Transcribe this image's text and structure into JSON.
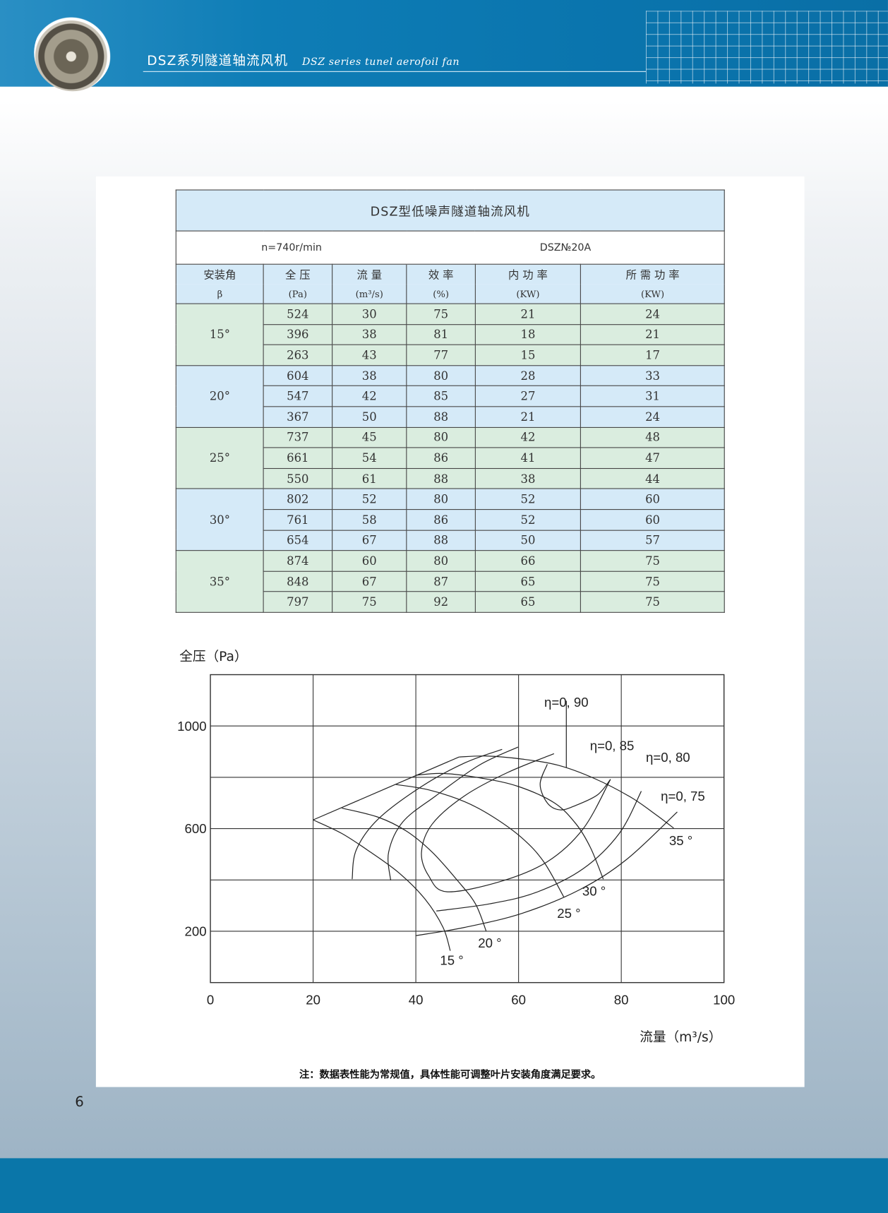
{
  "header": {
    "title_cn": "DSZ系列隧道轴流风机",
    "title_en": "DSZ series tunel aerofoil fan",
    "colors": {
      "band": "#0a74ad",
      "footer": "#0a76a9"
    }
  },
  "table": {
    "title": "DSZ型低噪声隧道轴流风机",
    "speed": "n=740r/min",
    "model": "DSZ№20A",
    "columns": [
      {
        "name": "安装角",
        "unit": "β"
      },
      {
        "name": "全 压",
        "unit": "(Pa)"
      },
      {
        "name": "流 量",
        "unit": "(m³/s)"
      },
      {
        "name": "效 率",
        "unit": "(%)"
      },
      {
        "name": "内 功 率",
        "unit": "(KW)"
      },
      {
        "name": "所 需 功 率",
        "unit": "(KW)"
      }
    ],
    "groups": [
      {
        "angle": "15°",
        "rows": [
          [
            "524",
            "30",
            "75",
            "21",
            "24"
          ],
          [
            "396",
            "38",
            "81",
            "18",
            "21"
          ],
          [
            "263",
            "43",
            "77",
            "15",
            "17"
          ]
        ]
      },
      {
        "angle": "20°",
        "rows": [
          [
            "604",
            "38",
            "80",
            "28",
            "33"
          ],
          [
            "547",
            "42",
            "85",
            "27",
            "31"
          ],
          [
            "367",
            "50",
            "88",
            "21",
            "24"
          ]
        ]
      },
      {
        "angle": "25°",
        "rows": [
          [
            "737",
            "45",
            "80",
            "42",
            "48"
          ],
          [
            "661",
            "54",
            "86",
            "41",
            "47"
          ],
          [
            "550",
            "61",
            "88",
            "38",
            "44"
          ]
        ]
      },
      {
        "angle": "30°",
        "rows": [
          [
            "802",
            "52",
            "80",
            "52",
            "60"
          ],
          [
            "761",
            "58",
            "86",
            "52",
            "60"
          ],
          [
            "654",
            "67",
            "88",
            "50",
            "57"
          ]
        ]
      },
      {
        "angle": "35°",
        "rows": [
          [
            "874",
            "60",
            "80",
            "66",
            "75"
          ],
          [
            "848",
            "67",
            "87",
            "65",
            "75"
          ],
          [
            "797",
            "75",
            "92",
            "65",
            "75"
          ]
        ]
      }
    ],
    "colors": {
      "header": "#d5eaf8",
      "group_green": "#daeddf",
      "group_blue": "#d5eaf8"
    }
  },
  "chart_data": {
    "type": "line",
    "ylabel": "全压（Pa）",
    "xlabel": "流量（m³/s）",
    "xlim": [
      0,
      100
    ],
    "ylim": [
      0,
      1200
    ],
    "x_ticks": [
      "0",
      "20",
      "40",
      "60",
      "80",
      "100"
    ],
    "y_ticks": [
      {
        "value": 200,
        "label": "200"
      },
      {
        "value": 600,
        "label": "600"
      },
      {
        "value": 1000,
        "label": "1000"
      }
    ],
    "grid": true,
    "angle_curves": [
      {
        "label": "15 °",
        "label_at": [
          47,
          69
        ],
        "points": [
          [
            20,
            634
          ],
          [
            25.6,
            581
          ],
          [
            31.2,
            508
          ],
          [
            36.8,
            426
          ],
          [
            41.8,
            325
          ],
          [
            45.3,
            215
          ],
          [
            46.7,
            124
          ]
        ]
      },
      {
        "label": "20 °",
        "label_at": [
          54.4,
          137
        ],
        "points": [
          [
            25.6,
            680
          ],
          [
            32.6,
            645
          ],
          [
            38.2,
            590
          ],
          [
            43.2,
            508
          ],
          [
            48.1,
            398
          ],
          [
            51.6,
            307
          ],
          [
            53.7,
            200
          ]
        ]
      },
      {
        "label": "25 °",
        "label_at": [
          69.8,
          252
        ],
        "points": [
          [
            36.1,
            772
          ],
          [
            42.5,
            751
          ],
          [
            49.5,
            705
          ],
          [
            55.1,
            645
          ],
          [
            60.7,
            563
          ],
          [
            64.9,
            471
          ],
          [
            68.8,
            334
          ]
        ]
      },
      {
        "label": "30 °",
        "label_at": [
          74.7,
          339
        ],
        "points": [
          [
            40,
            808
          ],
          [
            45.3,
            815
          ],
          [
            53,
            796
          ],
          [
            60,
            764
          ],
          [
            67,
            700
          ],
          [
            71.2,
            618
          ],
          [
            74,
            526
          ],
          [
            76.5,
            403
          ]
        ]
      },
      {
        "label": "35 °",
        "label_at": [
          91.6,
          535
        ],
        "points": [
          [
            48.4,
            879
          ],
          [
            53.7,
            883
          ],
          [
            60.7,
            871
          ],
          [
            67.7,
            847
          ],
          [
            74.7,
            796
          ],
          [
            81.8,
            723
          ],
          [
            86.7,
            655
          ],
          [
            90.2,
            602
          ]
        ]
      }
    ],
    "envelope": [
      [
        20,
        634
      ],
      [
        48.4,
        879
      ]
    ],
    "efficiency_curves": [
      {
        "label": "η=0, 75",
        "label_at": [
          92,
          709
        ],
        "segments": [
          [
            [
              56.8,
              909
            ],
            [
              49.5,
              856
            ],
            [
              41.1,
              764
            ],
            [
              32.6,
              636
            ],
            [
              28.4,
              517
            ],
            [
              27.6,
              403
            ]
          ],
          [
            [
              40,
              183
            ],
            [
              49.5,
              215
            ],
            [
              60.7,
              270
            ],
            [
              71.9,
              362
            ],
            [
              81.1,
              481
            ],
            [
              90.9,
              665
            ]
          ]
        ]
      },
      {
        "label": "η=0, 80",
        "label_at": [
          89.1,
          860
        ],
        "segments": [
          [
            [
              59.9,
              918
            ],
            [
              52.3,
              847
            ],
            [
              43.9,
              728
            ],
            [
              37.5,
              627
            ],
            [
              34.7,
              508
            ],
            [
              35.1,
              398
            ]
          ],
          [
            [
              44,
              279
            ],
            [
              54.4,
              307
            ],
            [
              63.5,
              352
            ],
            [
              72.6,
              444
            ],
            [
              79.6,
              581
            ],
            [
              83.9,
              746
            ]
          ]
        ]
      },
      {
        "label": "η=0, 85",
        "label_at": [
          78.2,
          906
        ],
        "segments": [
          [
            [
              66.9,
              892
            ],
            [
              57.9,
              819
            ],
            [
              49.5,
              728
            ],
            [
              43.2,
              618
            ],
            [
              41.1,
              508
            ],
            [
              42.5,
              416
            ],
            [
              46,
              354
            ],
            [
              56.5,
              394
            ],
            [
              65.6,
              471
            ],
            [
              72.6,
              600
            ],
            [
              77.9,
              792
            ]
          ]
        ]
      },
      {
        "label": "η=0, 90",
        "label_at": [
          69.3,
          1075
        ],
        "segments": [
          [
            [
              65.6,
              851
            ],
            [
              64.2,
              773
            ],
            [
              65.6,
              700
            ],
            [
              68.1,
              673
            ],
            [
              71.2,
              691
            ],
            [
              75.4,
              732
            ],
            [
              77.9,
              792
            ]
          ]
        ],
        "leader": [
          [
            69.3,
            1098
          ],
          [
            69.3,
            837
          ]
        ]
      }
    ]
  },
  "note": "注：数据表性能为常规值，具体性能可调整叶片安装角度满足要求。",
  "page_number": "6"
}
